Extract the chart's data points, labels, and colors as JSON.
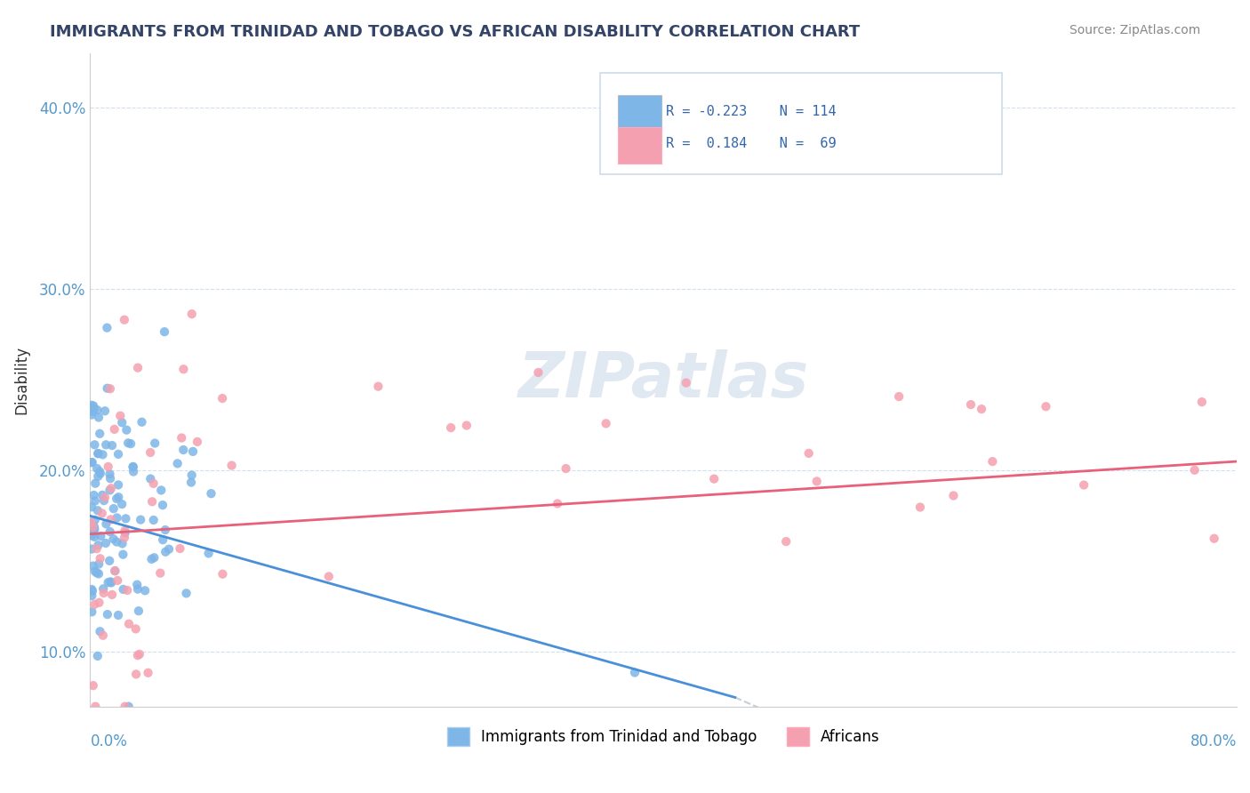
{
  "title": "IMMIGRANTS FROM TRINIDAD AND TOBAGO VS AFRICAN DISABILITY CORRELATION CHART",
  "source": "Source: ZipAtlas.com",
  "ylabel": "Disability",
  "yticks": [
    0.1,
    0.2,
    0.3,
    0.4
  ],
  "ytick_labels": [
    "10.0%",
    "20.0%",
    "30.0%",
    "40.0%"
  ],
  "xlim": [
    0.0,
    0.8
  ],
  "ylim": [
    0.07,
    0.43
  ],
  "blue_color": "#7EB6E8",
  "pink_color": "#F5A0B0",
  "blue_line_color": "#4A90D9",
  "pink_line_color": "#E8607A",
  "legend_r1": "R = -0.223",
  "legend_n1": "N = 114",
  "legend_r2": "R =  0.184",
  "legend_n2": "N =  69"
}
